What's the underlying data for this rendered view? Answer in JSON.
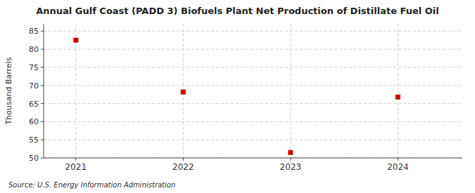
{
  "chart_data": {
    "type": "scatter",
    "title": "Annual Gulf Coast (PADD 3) Biofuels Plant Net Production of Distillate Fuel Oil",
    "ylabel": "Thousand Barrels",
    "source": "Source: U.S. Energy Information Administration",
    "x": [
      2021,
      2022,
      2023,
      2024
    ],
    "values": [
      82.5,
      68.2,
      51.5,
      66.8
    ],
    "color": "#cc0000",
    "marker": "square",
    "xlim": [
      2020.7,
      2024.6
    ],
    "xticks": [
      2021,
      2022,
      2023,
      2024
    ],
    "ylim": [
      50,
      87
    ],
    "yticks": [
      50,
      55,
      60,
      65,
      70,
      75,
      80,
      85
    ],
    "grid": true
  }
}
